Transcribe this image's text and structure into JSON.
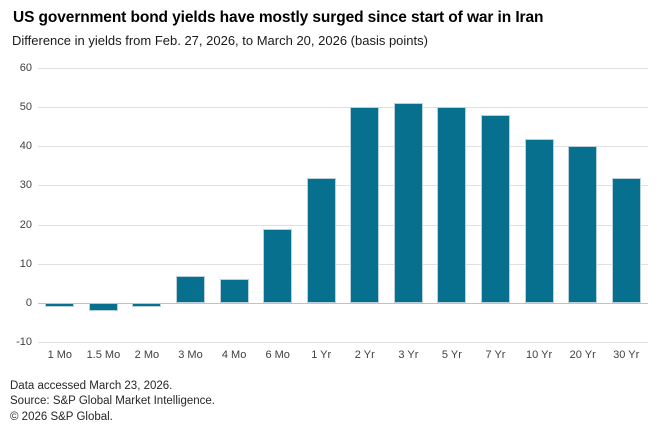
{
  "header": {
    "title": "US government bond yields have mostly surged since start of war in Iran",
    "subtitle": "Difference in yields from Feb. 27, 2026, to March 20, 2026 (basis points)"
  },
  "chart_data": {
    "type": "bar",
    "title": "US government bond yields have mostly surged since start of war in Iran",
    "subtitle": "Difference in yields from Feb. 27, 2026, to March 20, 2026 (basis points)",
    "categories": [
      "1 Mo",
      "1.5 Mo",
      "2 Mo",
      "3 Mo",
      "4 Mo",
      "6 Mo",
      "1 Yr",
      "2 Yr",
      "3 Yr",
      "5 Yr",
      "7 Yr",
      "10 Yr",
      "20 Yr",
      "30 Yr"
    ],
    "values": [
      -1,
      -2,
      -1,
      7,
      6,
      19,
      32,
      50,
      51,
      50,
      48,
      42,
      40,
      32
    ],
    "xlabel": "",
    "ylabel": "",
    "ylim": [
      -10,
      60
    ],
    "yticks": [
      60,
      50,
      40,
      30,
      20,
      10,
      0,
      -10
    ],
    "grid": true,
    "legend": "none",
    "bar_color": "#07708e"
  },
  "footer": {
    "line1": "Data accessed March 23, 2026.",
    "line2": "Source: S&P Global Market Intelligence.",
    "line3": "© 2026 S&P Global."
  }
}
